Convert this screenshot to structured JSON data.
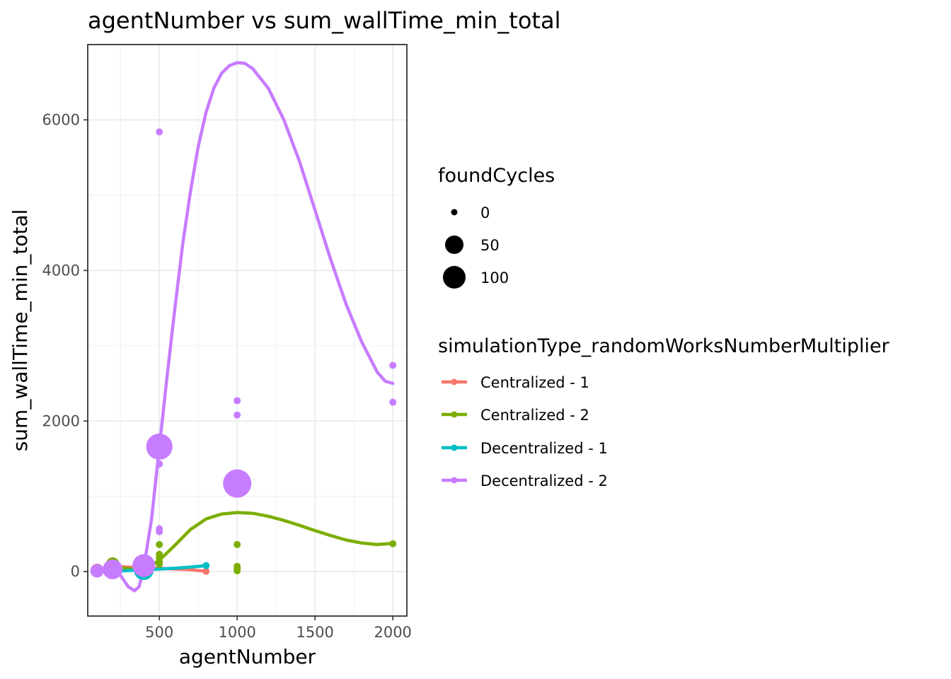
{
  "chart_data": {
    "type": "scatter",
    "title": "agentNumber  vs  sum_wallTime_min_total",
    "xlabel": "agentNumber",
    "ylabel": "sum_wallTime_min_total",
    "xlim": [
      40,
      2090
    ],
    "ylim": [
      -590,
      7000
    ],
    "xticks": [
      500,
      1000,
      1500,
      2000
    ],
    "yticks": [
      0,
      2000,
      4000,
      6000
    ],
    "grid": true,
    "size_legend": {
      "title": "foundCycles",
      "entries": [
        {
          "label": "0",
          "value": 0
        },
        {
          "label": "50",
          "value": 50
        },
        {
          "label": "100",
          "value": 100
        }
      ]
    },
    "color_legend": {
      "title": "simulationType_randomWorksNumberMultiplier",
      "placement": "right"
    },
    "series": [
      {
        "name": "Centralized - 1",
        "color": "#F8766D",
        "points": [
          {
            "x": 100,
            "y": 20,
            "size": 8
          },
          {
            "x": 200,
            "y": 60,
            "size": 8
          },
          {
            "x": 800,
            "y": 5,
            "size": 0
          }
        ],
        "smooth": [
          [
            100,
            25
          ],
          [
            200,
            70
          ],
          [
            300,
            60
          ],
          [
            400,
            50
          ],
          [
            500,
            45
          ],
          [
            600,
            35
          ],
          [
            700,
            25
          ],
          [
            800,
            5
          ]
        ]
      },
      {
        "name": "Centralized - 2",
        "color": "#7CAE00",
        "points": [
          {
            "x": 100,
            "y": 10,
            "size": 5
          },
          {
            "x": 200,
            "y": 100,
            "size": 10
          },
          {
            "x": 500,
            "y": 360,
            "size": 0
          },
          {
            "x": 500,
            "y": 230,
            "size": 0
          },
          {
            "x": 500,
            "y": 180,
            "size": 0
          },
          {
            "x": 500,
            "y": 130,
            "size": 0
          },
          {
            "x": 500,
            "y": 100,
            "size": 0
          },
          {
            "x": 1000,
            "y": 360,
            "size": 0
          },
          {
            "x": 1000,
            "y": 70,
            "size": 0
          },
          {
            "x": 1000,
            "y": 40,
            "size": 0
          },
          {
            "x": 1000,
            "y": 10,
            "size": 0
          },
          {
            "x": 2000,
            "y": 370,
            "size": 0
          }
        ],
        "smooth": [
          [
            100,
            10
          ],
          [
            200,
            60
          ],
          [
            300,
            40
          ],
          [
            400,
            20
          ],
          [
            500,
            150
          ],
          [
            600,
            350
          ],
          [
            700,
            560
          ],
          [
            800,
            700
          ],
          [
            900,
            765
          ],
          [
            1000,
            785
          ],
          [
            1100,
            775
          ],
          [
            1200,
            735
          ],
          [
            1300,
            680
          ],
          [
            1400,
            615
          ],
          [
            1500,
            545
          ],
          [
            1600,
            480
          ],
          [
            1700,
            420
          ],
          [
            1800,
            380
          ],
          [
            1900,
            360
          ],
          [
            2000,
            375
          ]
        ]
      },
      {
        "name": "Decentralized - 1",
        "color": "#00BFC4",
        "points": [
          {
            "x": 100,
            "y": 0,
            "size": 5
          },
          {
            "x": 200,
            "y": 20,
            "size": 10
          },
          {
            "x": 400,
            "y": 20,
            "size": 40
          },
          {
            "x": 800,
            "y": 80,
            "size": 0
          }
        ],
        "smooth": [
          [
            100,
            0
          ],
          [
            200,
            5
          ],
          [
            300,
            15
          ],
          [
            400,
            25
          ],
          [
            500,
            35
          ],
          [
            600,
            45
          ],
          [
            700,
            60
          ],
          [
            800,
            80
          ]
        ]
      },
      {
        "name": "Decentralized - 2",
        "color": "#C77CFF",
        "points": [
          {
            "x": 100,
            "y": 10,
            "size": 10
          },
          {
            "x": 200,
            "y": 30,
            "size": 40
          },
          {
            "x": 400,
            "y": 80,
            "size": 60
          },
          {
            "x": 500,
            "y": 5840,
            "size": 0
          },
          {
            "x": 500,
            "y": 1660,
            "size": 90
          },
          {
            "x": 500,
            "y": 1430,
            "size": 0
          },
          {
            "x": 500,
            "y": 570,
            "size": 0
          },
          {
            "x": 500,
            "y": 530,
            "size": 0
          },
          {
            "x": 1000,
            "y": 1170,
            "size": 110
          },
          {
            "x": 1000,
            "y": 2270,
            "size": 0
          },
          {
            "x": 1000,
            "y": 2080,
            "size": 0
          },
          {
            "x": 2000,
            "y": 2740,
            "size": 0
          },
          {
            "x": 2000,
            "y": 2250,
            "size": 0
          }
        ],
        "smooth": [
          [
            100,
            10
          ],
          [
            150,
            15
          ],
          [
            200,
            20
          ],
          [
            250,
            -50
          ],
          [
            300,
            -200
          ],
          [
            340,
            -255
          ],
          [
            370,
            -200
          ],
          [
            400,
            50
          ],
          [
            450,
            700
          ],
          [
            500,
            1650
          ],
          [
            550,
            2600
          ],
          [
            600,
            3500
          ],
          [
            650,
            4350
          ],
          [
            700,
            5050
          ],
          [
            750,
            5650
          ],
          [
            800,
            6100
          ],
          [
            850,
            6420
          ],
          [
            900,
            6620
          ],
          [
            950,
            6720
          ],
          [
            1000,
            6760
          ],
          [
            1050,
            6750
          ],
          [
            1100,
            6680
          ],
          [
            1200,
            6420
          ],
          [
            1300,
            6000
          ],
          [
            1400,
            5450
          ],
          [
            1500,
            4800
          ],
          [
            1600,
            4150
          ],
          [
            1700,
            3550
          ],
          [
            1800,
            3050
          ],
          [
            1900,
            2650
          ],
          [
            1950,
            2530
          ],
          [
            2000,
            2500
          ]
        ]
      }
    ]
  }
}
